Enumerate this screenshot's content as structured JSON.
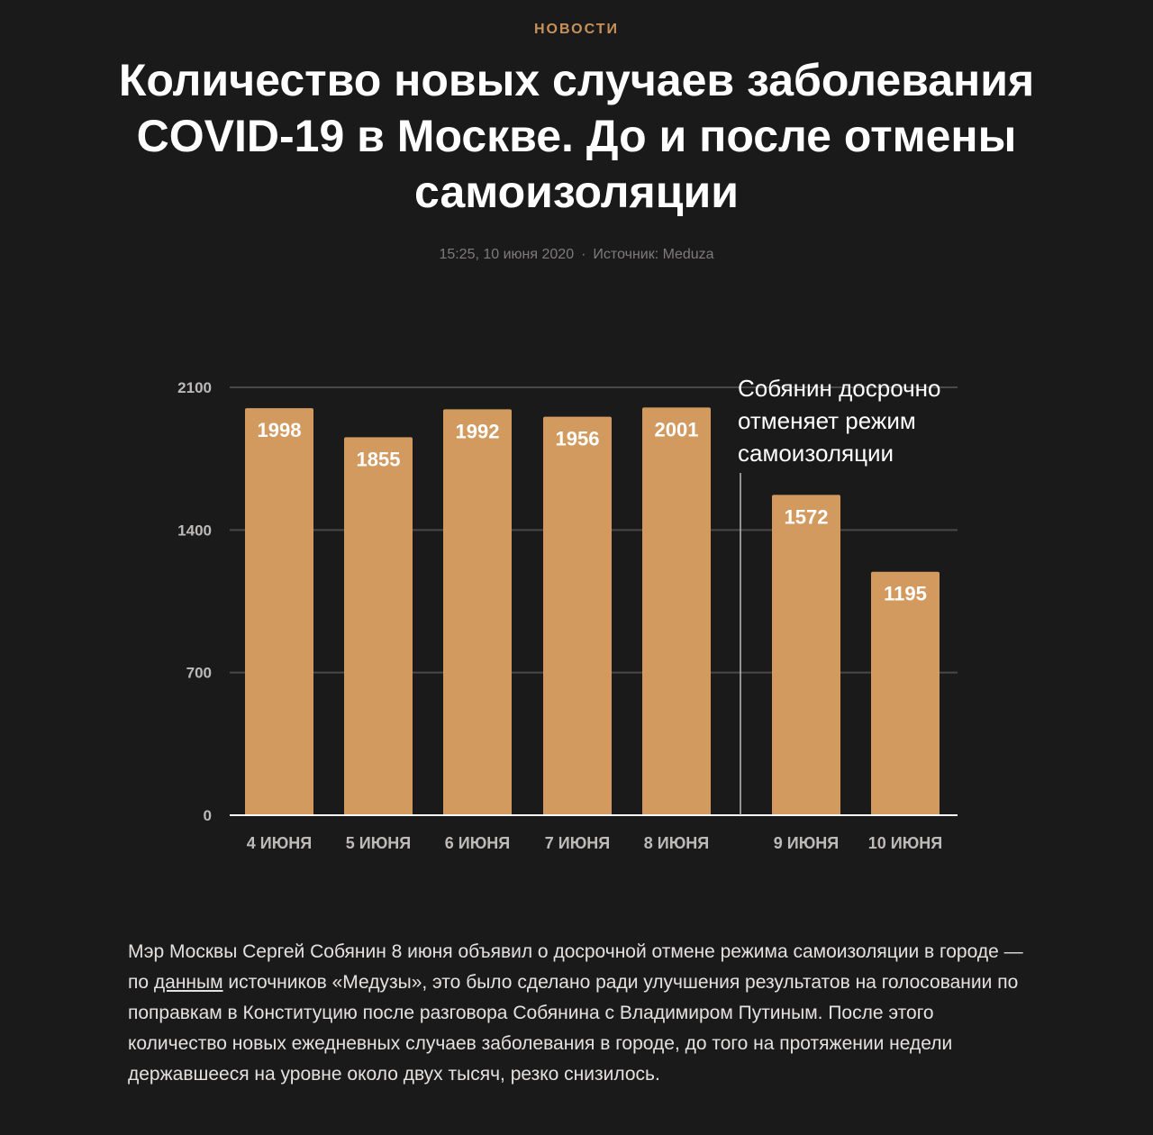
{
  "header": {
    "rubric": "НОВОСТИ",
    "title": "Количество новых случаев заболевания COVID-19 в Москве. До и после отмены самоизоляции",
    "timestamp": "15:25, 10 июня 2020",
    "source": "Источник: Meduza"
  },
  "colors": {
    "bar": "#d29a5f",
    "background": "#1b1a1a",
    "accent": "#c7925a",
    "grid": "#4a4848"
  },
  "chart_data": {
    "type": "bar",
    "title": "",
    "xlabel": "",
    "ylabel": "",
    "ylim": [
      0,
      2100
    ],
    "yticks": [
      "0",
      "700",
      "1400",
      "2100"
    ],
    "grid": true,
    "categories": [
      "4 ИЮНЯ",
      "5 ИЮНЯ",
      "6 ИЮНЯ",
      "7 ИЮНЯ",
      "8 ИЮНЯ",
      "9 ИЮНЯ",
      "10 ИЮНЯ"
    ],
    "values": [
      1998,
      1855,
      1992,
      1956,
      2001,
      1572,
      1195
    ],
    "value_labels": [
      "1998",
      "1855",
      "1992",
      "1956",
      "2001",
      "1572",
      "1195"
    ],
    "annotation": {
      "lines": [
        "Собянин досрочно",
        "отменяет режим",
        "самоизоляции"
      ],
      "between_categories": [
        "8 ИЮНЯ",
        "9 ИЮНЯ"
      ]
    }
  },
  "article": {
    "text_before_link": "Мэр Москвы Сергей Собянин 8 июня объявил о досрочной отмене режима самоизоляции в городе — по ",
    "link_text": "данным",
    "text_after_link": " источников «Медузы», это было сделано ради улучшения результатов на голосовании по поправкам в Конституцию после разговора Собянина с Владимиром Путиным. После этого количество новых ежедневных случаев заболевания в городе, до того на протяжении недели державшееся на уровне около двух тысяч, резко снизилось."
  }
}
